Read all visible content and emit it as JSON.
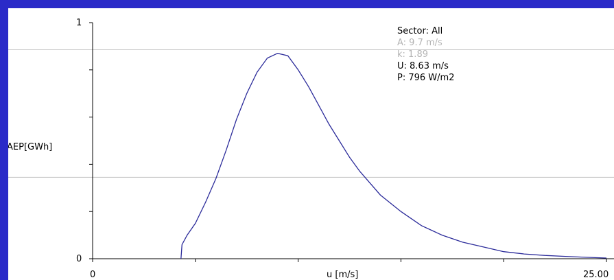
{
  "chart_data": {
    "type": "line",
    "ylabel": "AEP[GWh]",
    "xlabel": "u [m/s]",
    "xlim": [
      0,
      25
    ],
    "ylim": [
      0,
      1
    ],
    "x_tick_labels": [
      "0",
      "25.00"
    ],
    "y_tick_labels": [
      "0",
      "1"
    ],
    "grid": "horizontal",
    "gridlines_y": [
      0.345,
      0.885
    ],
    "series": [
      {
        "color": "#2b2b9a",
        "x": [
          4.3,
          4.35,
          4.6,
          5.0,
          5.5,
          6.0,
          6.5,
          7.0,
          7.5,
          8.0,
          8.5,
          9.0,
          9.5,
          10.0,
          10.5,
          11.0,
          11.5,
          12.0,
          12.5,
          13.0,
          14.0,
          15.0,
          16.0,
          17.0,
          18.0,
          19.0,
          20.0,
          21.0,
          22.0,
          23.0,
          24.0,
          25.0
        ],
        "y": [
          0.0,
          0.06,
          0.1,
          0.15,
          0.24,
          0.34,
          0.46,
          0.59,
          0.7,
          0.79,
          0.85,
          0.87,
          0.86,
          0.8,
          0.73,
          0.65,
          0.57,
          0.5,
          0.43,
          0.37,
          0.27,
          0.2,
          0.14,
          0.1,
          0.07,
          0.05,
          0.03,
          0.02,
          0.014,
          0.01,
          0.006,
          0.003
        ]
      }
    ],
    "info_lines": [
      {
        "text": "Sector: All",
        "dim": false
      },
      {
        "text": "A: 9.7 m/s",
        "dim": true
      },
      {
        "text": "k: 1.89",
        "dim": true
      },
      {
        "text": "U: 8.63 m/s",
        "dim": false
      },
      {
        "text": "P: 796 W/m2",
        "dim": false
      }
    ]
  }
}
